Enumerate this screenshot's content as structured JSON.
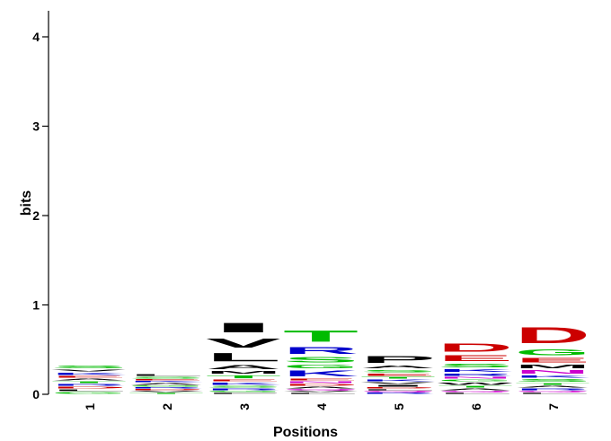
{
  "chart_data": {
    "type": "sequence-logo",
    "xlabel": "Positions",
    "ylabel": "bits",
    "ylim": [
      0,
      4.3
    ],
    "yticks": [
      "0",
      "1",
      "2",
      "3",
      "4"
    ],
    "positions": [
      "1",
      "2",
      "3",
      "4",
      "5",
      "6",
      "7"
    ],
    "colors": {
      "black": "#000000",
      "blue": "#0000cc",
      "green": "#00bb00",
      "red": "#cc0000",
      "magenta": "#cc00cc"
    },
    "stacks": [
      [
        {
          "letter": "S",
          "bits": 0.05,
          "color": "green"
        },
        {
          "letter": "V",
          "bits": 0.03,
          "color": "black"
        },
        {
          "letter": "K",
          "bits": 0.04,
          "color": "blue"
        },
        {
          "letter": "E",
          "bits": 0.03,
          "color": "red"
        },
        {
          "letter": "A",
          "bits": 0.03,
          "color": "black"
        },
        {
          "letter": "T",
          "bits": 0.03,
          "color": "green"
        },
        {
          "letter": "R",
          "bits": 0.03,
          "color": "blue"
        },
        {
          "letter": "D",
          "bits": 0.03,
          "color": "red"
        },
        {
          "letter": "L",
          "bits": 0.03,
          "color": "black"
        },
        {
          "letter": "G",
          "bits": 0.03,
          "color": "green"
        }
      ],
      [
        {
          "letter": "L",
          "bits": 0.03,
          "color": "black"
        },
        {
          "letter": "S",
          "bits": 0.03,
          "color": "green"
        },
        {
          "letter": "E",
          "bits": 0.02,
          "color": "red"
        },
        {
          "letter": "K",
          "bits": 0.02,
          "color": "blue"
        },
        {
          "letter": "A",
          "bits": 0.03,
          "color": "black"
        },
        {
          "letter": "G",
          "bits": 0.02,
          "color": "green"
        },
        {
          "letter": "R",
          "bits": 0.02,
          "color": "blue"
        },
        {
          "letter": "D",
          "bits": 0.02,
          "color": "red"
        },
        {
          "letter": "V",
          "bits": 0.02,
          "color": "black"
        },
        {
          "letter": "T",
          "bits": 0.02,
          "color": "green"
        }
      ],
      [
        {
          "letter": "I",
          "bits": 0.17,
          "color": "black"
        },
        {
          "letter": "V",
          "bits": 0.17,
          "color": "black"
        },
        {
          "letter": "L",
          "bits": 0.15,
          "color": "black"
        },
        {
          "letter": "A",
          "bits": 0.07,
          "color": "black"
        },
        {
          "letter": "M",
          "bits": 0.05,
          "color": "black"
        },
        {
          "letter": "T",
          "bits": 0.05,
          "color": "green"
        },
        {
          "letter": "E",
          "bits": 0.03,
          "color": "red"
        },
        {
          "letter": "K",
          "bits": 0.04,
          "color": "blue"
        },
        {
          "letter": "S",
          "bits": 0.03,
          "color": "green"
        },
        {
          "letter": "R",
          "bits": 0.03,
          "color": "blue"
        },
        {
          "letter": "G",
          "bits": 0.02,
          "color": "green"
        },
        {
          "letter": "F",
          "bits": 0.02,
          "color": "black"
        }
      ],
      [
        {
          "letter": "T",
          "bits": 0.2,
          "color": "green"
        },
        {
          "letter": "R",
          "bits": 0.12,
          "color": "blue"
        },
        {
          "letter": "S",
          "bits": 0.09,
          "color": "green"
        },
        {
          "letter": "G",
          "bits": 0.06,
          "color": "green"
        },
        {
          "letter": "K",
          "bits": 0.1,
          "color": "blue"
        },
        {
          "letter": "E",
          "bits": 0.03,
          "color": "red"
        },
        {
          "letter": "N",
          "bits": 0.03,
          "color": "magenta"
        },
        {
          "letter": "D",
          "bits": 0.03,
          "color": "red"
        },
        {
          "letter": "A",
          "bits": 0.03,
          "color": "black"
        },
        {
          "letter": "Q",
          "bits": 0.02,
          "color": "magenta"
        },
        {
          "letter": "V",
          "bits": 0.02,
          "color": "black"
        },
        {
          "letter": "L",
          "bits": 0.02,
          "color": "black"
        }
      ],
      [
        {
          "letter": "P",
          "bits": 0.12,
          "color": "black"
        },
        {
          "letter": "A",
          "bits": 0.05,
          "color": "black"
        },
        {
          "letter": "S",
          "bits": 0.04,
          "color": "green"
        },
        {
          "letter": "E",
          "bits": 0.04,
          "color": "red"
        },
        {
          "letter": "T",
          "bits": 0.03,
          "color": "green"
        },
        {
          "letter": "K",
          "bits": 0.03,
          "color": "blue"
        },
        {
          "letter": "V",
          "bits": 0.03,
          "color": "black"
        },
        {
          "letter": "I",
          "bits": 0.03,
          "color": "black"
        },
        {
          "letter": "D",
          "bits": 0.02,
          "color": "red"
        },
        {
          "letter": "L",
          "bits": 0.02,
          "color": "black"
        },
        {
          "letter": "Q",
          "bits": 0.02,
          "color": "magenta"
        },
        {
          "letter": "R",
          "bits": 0.02,
          "color": "blue"
        }
      ],
      [
        {
          "letter": "D",
          "bits": 0.15,
          "color": "red"
        },
        {
          "letter": "E",
          "bits": 0.1,
          "color": "red"
        },
        {
          "letter": "S",
          "bits": 0.06,
          "color": "green"
        },
        {
          "letter": "K",
          "bits": 0.05,
          "color": "blue"
        },
        {
          "letter": "R",
          "bits": 0.04,
          "color": "blue"
        },
        {
          "letter": "N",
          "bits": 0.03,
          "color": "magenta"
        },
        {
          "letter": "G",
          "bits": 0.03,
          "color": "green"
        },
        {
          "letter": "W",
          "bits": 0.04,
          "color": "black"
        },
        {
          "letter": "T",
          "bits": 0.03,
          "color": "green"
        },
        {
          "letter": "A",
          "bits": 0.03,
          "color": "black"
        },
        {
          "letter": "Q",
          "bits": 0.02,
          "color": "magenta"
        },
        {
          "letter": "L",
          "bits": 0.02,
          "color": "black"
        }
      ],
      [
        {
          "letter": "D",
          "bits": 0.28,
          "color": "red"
        },
        {
          "letter": "G",
          "bits": 0.1,
          "color": "green"
        },
        {
          "letter": "E",
          "bits": 0.08,
          "color": "red"
        },
        {
          "letter": "M",
          "bits": 0.06,
          "color": "black"
        },
        {
          "letter": "N",
          "bits": 0.06,
          "color": "magenta"
        },
        {
          "letter": "K",
          "bits": 0.04,
          "color": "blue"
        },
        {
          "letter": "S",
          "bits": 0.05,
          "color": "green"
        },
        {
          "letter": "T",
          "bits": 0.03,
          "color": "green"
        },
        {
          "letter": "A",
          "bits": 0.03,
          "color": "black"
        },
        {
          "letter": "R",
          "bits": 0.03,
          "color": "blue"
        },
        {
          "letter": "Q",
          "bits": 0.02,
          "color": "magenta"
        },
        {
          "letter": "L",
          "bits": 0.02,
          "color": "black"
        }
      ]
    ]
  }
}
